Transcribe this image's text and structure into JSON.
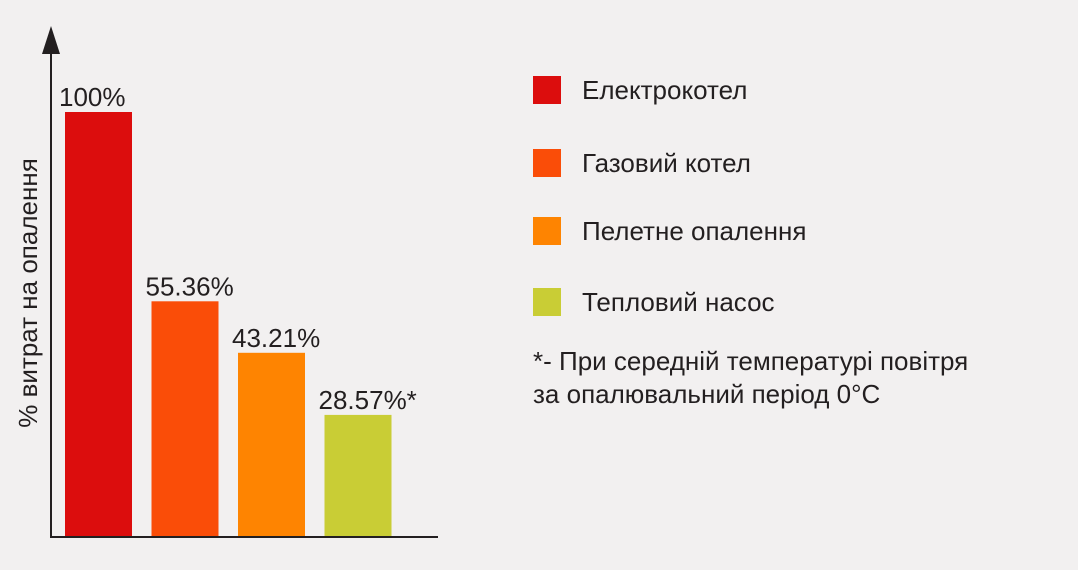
{
  "chart_data": {
    "type": "bar",
    "title": "",
    "xlabel": "",
    "ylabel": "% витрат на опалення",
    "ylim": [
      0,
      100
    ],
    "grid": false,
    "legend_position": "right",
    "categories": [
      "Електрокотел",
      "Газовий котел",
      "Пелетне опалення",
      "Тепловий насос"
    ],
    "values": [
      100,
      55.36,
      43.21,
      28.57
    ],
    "data_labels": [
      "100%",
      "55.36%",
      "43.21%",
      "28.57%*"
    ],
    "colors": [
      "#dc0d0d",
      "#fa4d08",
      "#fe8401",
      "#c9cd35"
    ]
  },
  "legend": {
    "items": [
      {
        "label": "Електрокотел",
        "color": "#dc0d0d"
      },
      {
        "label": "Газовий котел",
        "color": "#fa4d08"
      },
      {
        "label": "Пелетне опалення",
        "color": "#fe8401"
      },
      {
        "label": "Тепловий насос",
        "color": "#c9cd35"
      }
    ]
  },
  "footnote": {
    "line1": "*- При середній температурі повітря",
    "line2": "за опалювальний період 0°C"
  },
  "colors": {
    "background": "#f2f0f0",
    "text": "#231f20",
    "axis": "#231f20"
  }
}
